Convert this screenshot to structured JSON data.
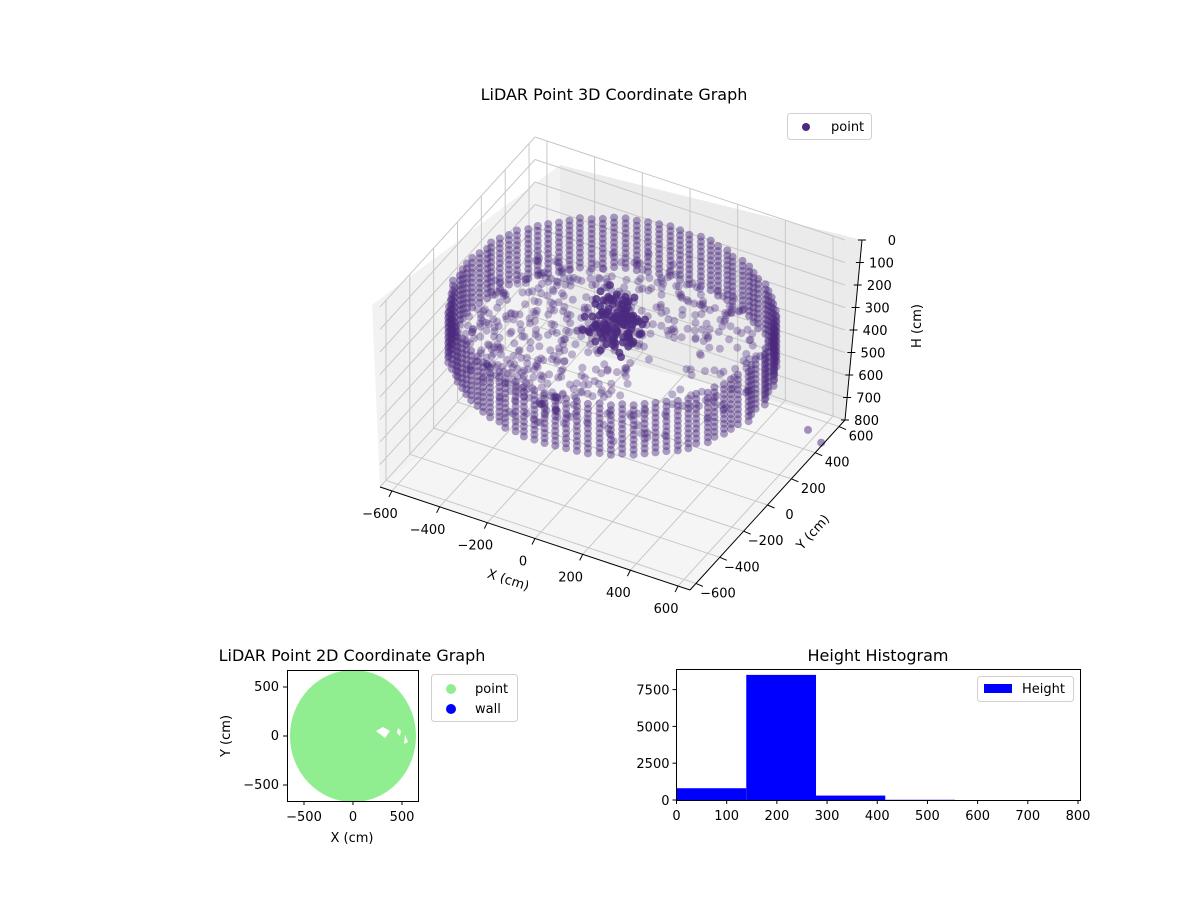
{
  "chart_data": [
    {
      "type": "scatter",
      "projection": "3d",
      "title": "LiDAR Point 3D Coordinate Graph",
      "xlabel": "X (cm)",
      "ylabel": "Y (cm)",
      "zlabel": "H (cm)",
      "xlim": [
        -650,
        650
      ],
      "ylim": [
        -650,
        650
      ],
      "zlim": [
        800,
        0
      ],
      "x_ticks": [
        -600,
        -400,
        -200,
        0,
        200,
        400,
        600
      ],
      "y_ticks": [
        -600,
        -400,
        -200,
        0,
        200,
        400,
        600
      ],
      "z_ticks": [
        0,
        100,
        200,
        300,
        400,
        500,
        600,
        700,
        800
      ],
      "legend": [
        {
          "label": "point",
          "color": "#4b2a7f"
        }
      ],
      "legend_position": "upper right",
      "grid": true,
      "description": "Ring of points (radius ~600 cm) forming a cylindrical wall at heights ~150-400 cm, with interior floor points and an obstacle cluster near center; two outliers near (600,500).",
      "color": "#4b2a7f"
    },
    {
      "type": "scatter",
      "title": "LiDAR Point 2D Coordinate Graph",
      "xlabel": "X (cm)",
      "ylabel": "Y (cm)",
      "xlim": [
        -670,
        670
      ],
      "ylim": [
        -670,
        670
      ],
      "x_ticks": [
        -500,
        0,
        500
      ],
      "y_ticks": [
        -500,
        0,
        500
      ],
      "legend": [
        {
          "label": "point",
          "color": "#90ee90"
        },
        {
          "label": "wall",
          "color": "#0000ff"
        }
      ],
      "legend_position": "outside right",
      "description": "Filled disk of points (radius ~650 cm), clipped at plot edges, with small gaps near (500, 0)."
    },
    {
      "type": "bar",
      "subtype": "histogram",
      "title": "Height Histogram",
      "xlabel": "",
      "ylabel": "",
      "bin_edges": [
        0,
        139,
        278,
        416,
        555,
        694,
        800
      ],
      "values": [
        800,
        8500,
        300,
        15,
        0,
        0
      ],
      "xlim": [
        0,
        805
      ],
      "ylim": [
        0,
        8900
      ],
      "x_ticks": [
        0,
        100,
        200,
        300,
        400,
        500,
        600,
        700,
        800
      ],
      "y_ticks": [
        0,
        2500,
        5000,
        7500
      ],
      "legend": [
        {
          "label": "Height",
          "color": "#0000ff"
        }
      ],
      "legend_position": "upper right",
      "color": "#0000ff"
    }
  ],
  "plot3d": {
    "title": "LiDAR Point 3D Coordinate Graph",
    "legend_label": "point",
    "xlabel": "X (cm)",
    "ylabel": "Y (cm)",
    "zlabel": "H (cm)",
    "x_tick_labels": [
      "−600",
      "−400",
      "−200",
      "0",
      "200",
      "400",
      "600"
    ],
    "y_tick_labels": [
      "−600",
      "−400",
      "−200",
      "0",
      "200",
      "400",
      "600"
    ],
    "z_tick_labels": [
      "0",
      "100",
      "200",
      "300",
      "400",
      "500",
      "600",
      "700",
      "800"
    ]
  },
  "plot2d": {
    "title": "LiDAR Point 2D Coordinate Graph",
    "xlabel": "X (cm)",
    "ylabel": "Y (cm)",
    "x_tick_labels": [
      "−500",
      "0",
      "500"
    ],
    "y_tick_labels": [
      "500",
      "0",
      "−500"
    ],
    "legend": [
      "point",
      "wall"
    ]
  },
  "hist": {
    "title": "Height Histogram",
    "legend_label": "Height",
    "x_tick_labels": [
      "0",
      "100",
      "200",
      "300",
      "400",
      "500",
      "600",
      "700",
      "800"
    ],
    "y_tick_labels": [
      "0",
      "2500",
      "5000",
      "7500"
    ]
  }
}
